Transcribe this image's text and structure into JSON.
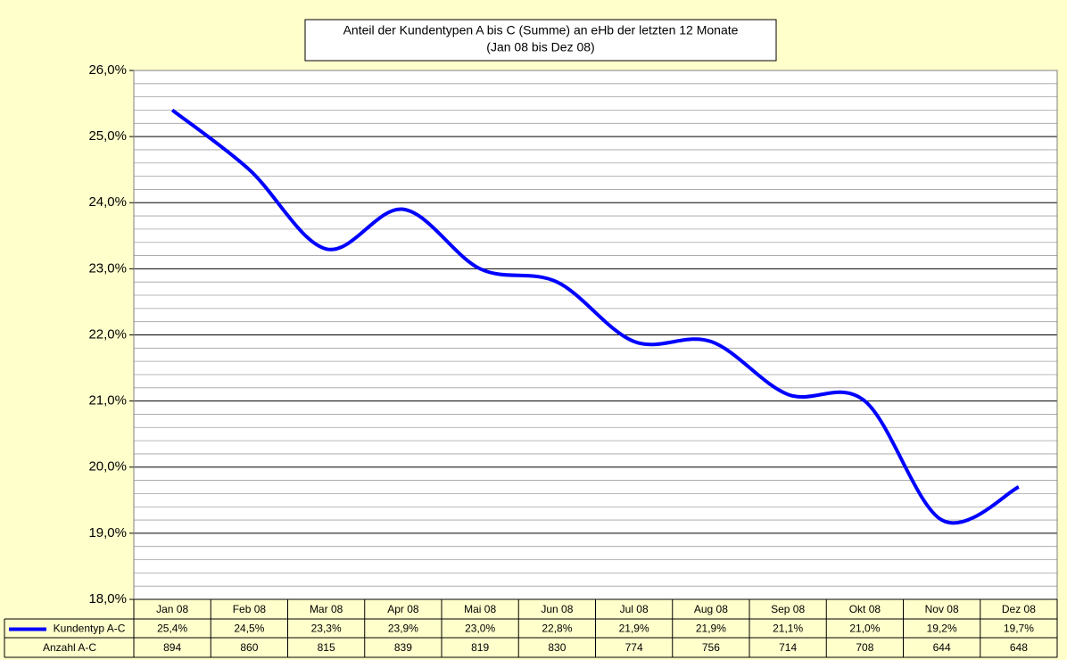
{
  "chart_data": {
    "type": "line",
    "title": [
      "Anteil der Kundentypen A bis C (Summe) an eHb der letzten 12 Monate",
      "(Jan 08 bis Dez 08)"
    ],
    "categories": [
      "Jan 08",
      "Feb 08",
      "Mar 08",
      "Apr 08",
      "Mai 08",
      "Jun 08",
      "Jul 08",
      "Aug 08",
      "Sep 08",
      "Okt 08",
      "Nov 08",
      "Dez 08"
    ],
    "series": [
      {
        "name": "Kundentyp A-C",
        "color": "#0000ff",
        "smooth": true,
        "values": [
          25.4,
          24.5,
          23.3,
          23.9,
          23.0,
          22.8,
          21.9,
          21.9,
          21.1,
          21.0,
          19.2,
          19.7
        ],
        "value_labels": [
          "25,4%",
          "24,5%",
          "23,3%",
          "23,9%",
          "23,0%",
          "22,8%",
          "21,9%",
          "21,9%",
          "21,1%",
          "21,0%",
          "19,2%",
          "19,7%"
        ]
      },
      {
        "name": "Anzahl A-C",
        "plotted": false,
        "values": [
          894,
          860,
          815,
          839,
          819,
          830,
          774,
          756,
          714,
          708,
          644,
          648
        ]
      }
    ],
    "ylim": [
      18,
      26
    ],
    "yticks": [
      {
        "value": 18,
        "label": "18,0%"
      },
      {
        "value": 19,
        "label": "19,0%"
      },
      {
        "value": 20,
        "label": "20,0%"
      },
      {
        "value": 21,
        "label": "21,0%"
      },
      {
        "value": 22,
        "label": "22,0%"
      },
      {
        "value": 23,
        "label": "23,0%"
      },
      {
        "value": 24,
        "label": "24,0%"
      },
      {
        "value": 25,
        "label": "25,0%"
      },
      {
        "value": 26,
        "label": "26,0%"
      }
    ],
    "grid": true,
    "minor_grid_divisions": 5,
    "data_table": true
  }
}
